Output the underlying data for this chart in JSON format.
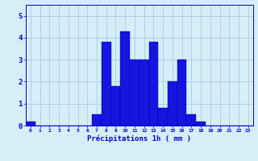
{
  "hours": [
    0,
    1,
    2,
    3,
    4,
    5,
    6,
    7,
    8,
    9,
    10,
    11,
    12,
    13,
    14,
    15,
    16,
    17,
    18,
    19,
    20,
    21,
    22,
    23
  ],
  "values": [
    0.2,
    0,
    0,
    0,
    0,
    0,
    0,
    0.5,
    3.8,
    1.8,
    4.3,
    3.0,
    3.0,
    3.8,
    0.8,
    2.0,
    3.0,
    0.5,
    0.2,
    0,
    0,
    0,
    0,
    0
  ],
  "bar_color": "#1515dd",
  "bar_edge_color": "#0000bb",
  "background_color": "#d6eef8",
  "grid_color": "#aacce0",
  "xlabel": "Précipitations 1h ( mm )",
  "xlabel_color": "#0000cc",
  "tick_color": "#0000cc",
  "ylim": [
    0,
    5.5
  ],
  "yticks": [
    0,
    1,
    2,
    3,
    4,
    5
  ],
  "figsize": [
    3.2,
    2.0
  ],
  "dpi": 100
}
